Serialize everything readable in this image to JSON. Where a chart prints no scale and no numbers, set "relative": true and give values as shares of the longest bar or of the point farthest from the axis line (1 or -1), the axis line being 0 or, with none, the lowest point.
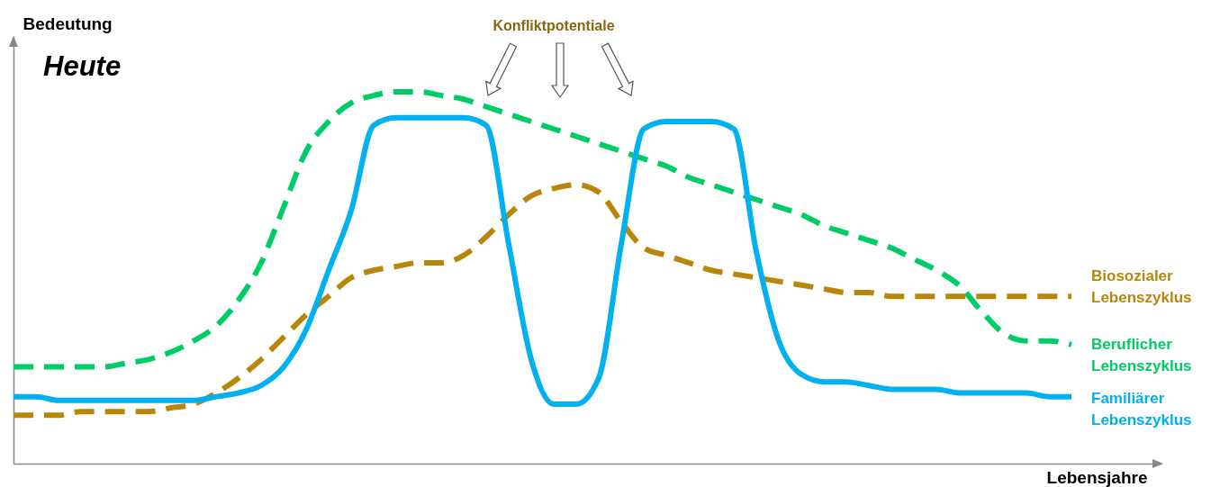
{
  "chart_data": {
    "type": "line",
    "title": "Heute",
    "xlabel": "Lebensjahre",
    "ylabel": "Bedeutung",
    "relative": true,
    "annotations": [
      "Konfliktpotentiale"
    ],
    "categories": [
      null,
      null,
      null,
      null,
      null,
      null,
      null,
      null,
      null,
      null,
      null,
      null,
      null,
      null,
      null,
      null,
      null,
      null,
      null,
      null,
      null,
      null,
      null,
      null,
      null,
      null,
      null,
      null,
      null,
      null,
      null,
      null,
      null,
      null,
      null,
      null,
      null,
      null,
      null,
      null,
      null,
      null,
      null,
      null,
      null,
      null,
      null,
      null
    ],
    "series": [
      {
        "name": "Biosozialer Lebenszyklus",
        "color": "#b8860b",
        "line_style": "dashed",
        "values": [
          0.13,
          0.13,
          0.13,
          0.14,
          0.14,
          0.14,
          0.14,
          0.15,
          0.16,
          0.19,
          0.23,
          0.28,
          0.34,
          0.4,
          0.45,
          0.5,
          0.52,
          0.53,
          0.54,
          0.54,
          0.56,
          0.61,
          0.67,
          0.72,
          0.74,
          0.75,
          0.73,
          0.65,
          0.58,
          0.56,
          0.54,
          0.52,
          0.51,
          0.5,
          0.49,
          0.48,
          0.47,
          0.46,
          0.46,
          0.45,
          0.45,
          0.45,
          0.45,
          0.45,
          0.45,
          0.45,
          0.45,
          0.45
        ]
      },
      {
        "name": "Beruflicher Lebenszyklus",
        "color": "#00cc66",
        "line_style": "dashed",
        "values": [
          0.26,
          0.26,
          0.26,
          0.26,
          0.26,
          0.27,
          0.28,
          0.3,
          0.33,
          0.37,
          0.44,
          0.54,
          0.69,
          0.84,
          0.92,
          0.97,
          0.99,
          1,
          1.0,
          0.99,
          0.98,
          0.96,
          0.94,
          0.92,
          0.9,
          0.88,
          0.86,
          0.84,
          0.82,
          0.8,
          0.77,
          0.75,
          0.73,
          0.71,
          0.69,
          0.67,
          0.64,
          0.62,
          0.6,
          0.58,
          0.55,
          0.52,
          0.48,
          0.41,
          0.35,
          0.33,
          0.33,
          0.32
        ]
      },
      {
        "name": "Familiärer Lebenszyklus",
        "color": "#00b0f0",
        "line_style": "solid",
        "values": [
          0.18,
          0.18,
          0.17,
          0.17,
          0.17,
          0.17,
          0.17,
          0.17,
          0.17,
          0.18,
          0.19,
          0.21,
          0.26,
          0.36,
          0.52,
          0.68,
          0.91,
          0.93,
          0.93,
          0.93,
          0.93,
          0.91,
          0.59,
          0.28,
          0.16,
          0.16,
          0.23,
          0.59,
          0.9,
          0.92,
          0.92,
          0.92,
          0.9,
          0.57,
          0.33,
          0.24,
          0.22,
          0.22,
          0.21,
          0.2,
          0.2,
          0.2,
          0.19,
          0.19,
          0.19,
          0.19,
          0.18,
          0.18
        ]
      }
    ]
  }
}
